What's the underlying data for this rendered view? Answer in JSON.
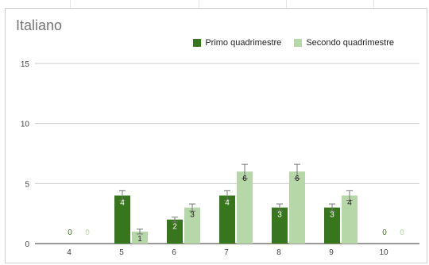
{
  "chart_data": {
    "type": "bar",
    "title": "Italiano",
    "categories": [
      "4",
      "5",
      "6",
      "7",
      "8",
      "9",
      "10"
    ],
    "series": [
      {
        "name": "Primo quadrimestre",
        "values": [
          0,
          4,
          2,
          4,
          3,
          3,
          0
        ],
        "color": "#38761d",
        "label_color": "#ffffff"
      },
      {
        "name": "Secondo quadrimestre",
        "values": [
          0,
          1,
          3,
          6,
          6,
          4,
          0
        ],
        "color": "#b6d7a8",
        "label_color": "#222222"
      }
    ],
    "error_bars": true,
    "y_ticks": [
      "0",
      "5",
      "10",
      "15"
    ],
    "ylim": [
      0,
      15
    ],
    "grid": true,
    "legend_position": "top-right"
  }
}
